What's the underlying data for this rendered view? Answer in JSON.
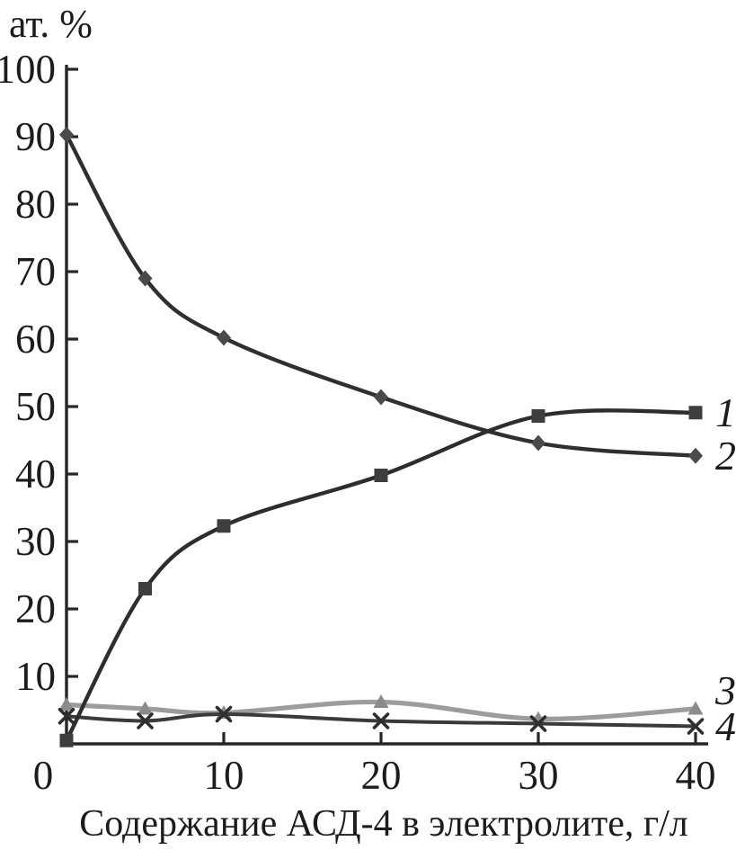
{
  "chart_data": {
    "type": "line",
    "title": "ат. %",
    "xlabel": "Содержание АСД-4 в электролите, г/л",
    "ylabel": "ат. %",
    "x": [
      0,
      5,
      10,
      20,
      30,
      40
    ],
    "x_ticks": [
      0,
      10,
      20,
      30,
      40
    ],
    "y_ticks": [
      10,
      20,
      30,
      40,
      50,
      60,
      70,
      80,
      90,
      100
    ],
    "xlim": [
      0,
      41
    ],
    "ylim": [
      0,
      100.7
    ],
    "grid": false,
    "legend_position": "italic numerals at right end of each curve",
    "axis_color": "#262626",
    "text_color": "#1c1c1c",
    "series": [
      {
        "name": "1",
        "marker": "square",
        "line_color": "#2d2d2d",
        "marker_color": "#3e3e3e",
        "values": [
          0.5,
          23,
          32.3,
          39.8,
          48.6,
          49.1
        ]
      },
      {
        "name": "2",
        "marker": "diamond",
        "line_color": "#2f2f2f",
        "marker_color": "#4a4a4a",
        "values": [
          90.3,
          69,
          60.2,
          51.4,
          44.6,
          42.7
        ]
      },
      {
        "name": "3",
        "marker": "triangle",
        "line_color": "#9c9c9c",
        "marker_color": "#8b8b8b",
        "values": [
          5.8,
          5.2,
          4.6,
          6.2,
          3.7,
          5.2
        ]
      },
      {
        "name": "4",
        "marker": "x",
        "line_color": "#3a3a3a",
        "marker_color": "#2e2e2e",
        "values": [
          4.1,
          3.4,
          4.4,
          3.4,
          3.0,
          2.6
        ]
      }
    ]
  }
}
